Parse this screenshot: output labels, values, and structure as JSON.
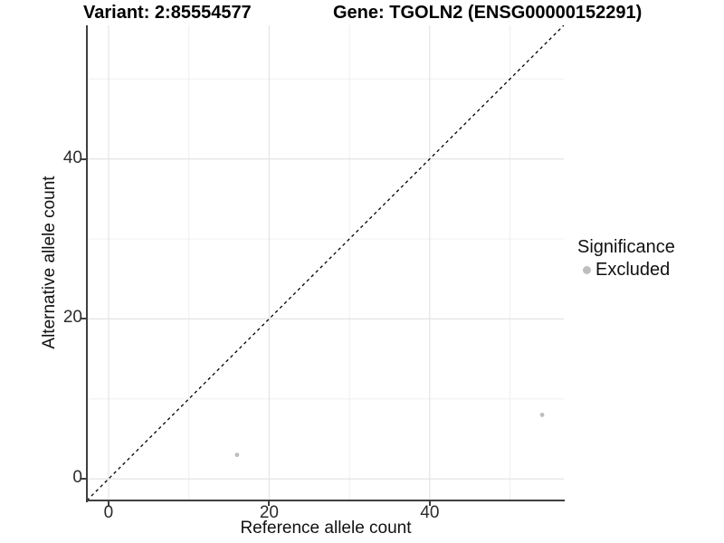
{
  "header": {
    "variant_label": "Variant: 2:85554577",
    "gene_label": "Gene: TGOLN2 (ENSG00000152291)"
  },
  "chart_data": {
    "type": "scatter",
    "xlabel": "Reference allele count",
    "ylabel": "Alternative allele count",
    "xlim": [
      -2.7,
      56.7
    ],
    "ylim": [
      -2.7,
      56.7
    ],
    "x_ticks": [
      0,
      20,
      40
    ],
    "y_ticks": [
      0,
      20,
      40
    ],
    "x_minor": [
      10,
      30,
      50
    ],
    "y_minor": [
      10,
      30,
      50
    ],
    "grid": true,
    "identity_line": {
      "type": "dashed",
      "slope": 1,
      "intercept": 0,
      "color": "#000000"
    },
    "series": [
      {
        "name": "Excluded",
        "color": "#bebebe",
        "points": [
          {
            "x": 16,
            "y": 3
          },
          {
            "x": 54,
            "y": 8
          }
        ]
      }
    ],
    "legend": {
      "title": "Significance",
      "position": "right",
      "items": [
        {
          "label": "Excluded",
          "color": "#bebebe"
        }
      ]
    }
  },
  "colors": {
    "point": "#bebebe",
    "grid_major": "#e4e4e4",
    "grid_minor": "#f0f0f0",
    "axis_line": "#3f3f3f",
    "identity_line": "#000000",
    "title_text": "#000000",
    "axis_text": "#2b2b2b"
  }
}
